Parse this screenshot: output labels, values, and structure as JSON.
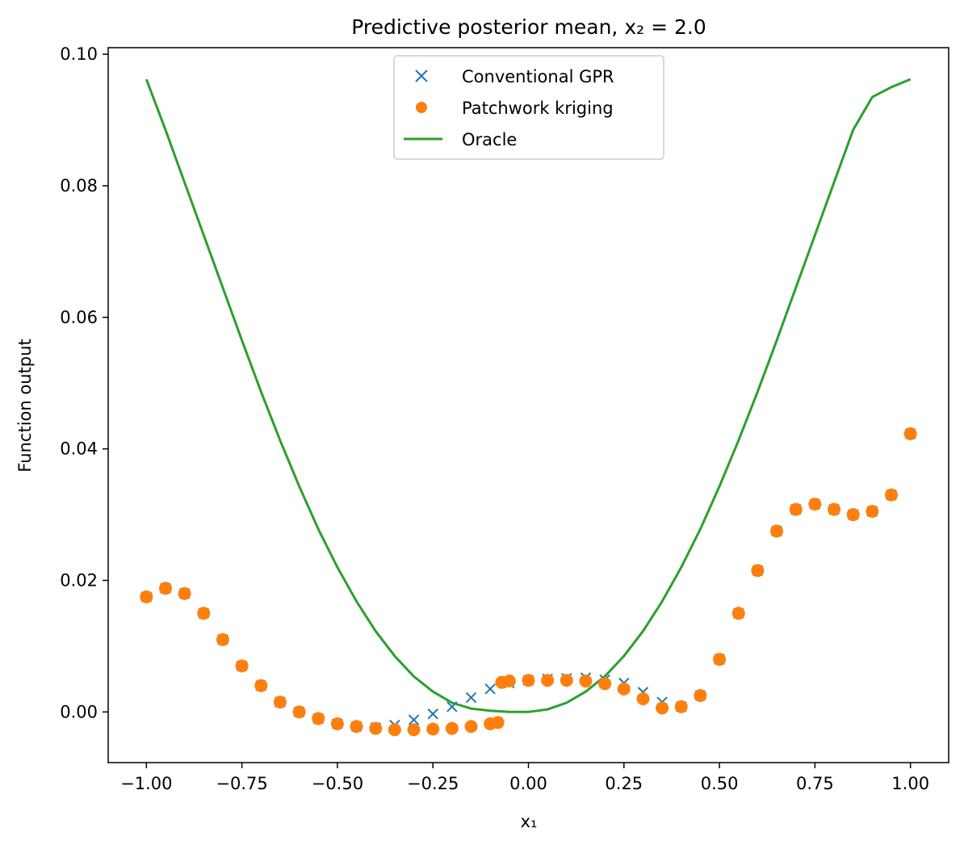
{
  "chart_data": {
    "type": "scatter",
    "title": "Predictive posterior mean, x₂ = 2.0",
    "xlabel": "x₁",
    "ylabel": "Function output",
    "xlim": [
      -1.1,
      1.1
    ],
    "ylim": [
      -0.0077,
      0.101
    ],
    "xticks": [
      -1.0,
      -0.75,
      -0.5,
      -0.25,
      0.0,
      0.25,
      0.5,
      0.75,
      1.0
    ],
    "xtick_labels": [
      "−1.00",
      "−0.75",
      "−0.50",
      "−0.25",
      "0.00",
      "0.25",
      "0.50",
      "0.75",
      "1.00"
    ],
    "yticks": [
      0.0,
      0.02,
      0.04,
      0.06,
      0.08,
      0.1
    ],
    "ytick_labels": [
      "0.00",
      "0.02",
      "0.04",
      "0.06",
      "0.08",
      "0.10"
    ],
    "grid": false,
    "legend_position": "top-center",
    "series": [
      {
        "name": "Conventional GPR",
        "marker": "x",
        "color": "#1f77b4",
        "x": [
          -1.0,
          -0.95,
          -0.9,
          -0.85,
          -0.8,
          -0.75,
          -0.7,
          -0.65,
          -0.6,
          -0.55,
          -0.5,
          -0.45,
          -0.4,
          -0.35,
          -0.3,
          -0.25,
          -0.2,
          -0.15,
          -0.1,
          -0.05,
          0.0,
          0.05,
          0.1,
          0.15,
          0.2,
          0.25,
          0.3,
          0.35,
          0.4,
          0.45,
          0.5,
          0.55,
          0.6,
          0.65,
          0.7,
          0.75,
          0.8,
          0.85,
          0.9,
          0.95,
          1.0
        ],
        "y": [
          0.0175,
          0.0188,
          0.018,
          0.015,
          0.011,
          0.007,
          0.004,
          0.0015,
          0.0,
          -0.001,
          -0.0018,
          -0.0022,
          -0.0024,
          -0.002,
          -0.0012,
          -0.0003,
          0.0008,
          0.0022,
          0.0035,
          0.0044,
          0.0048,
          0.005,
          0.0051,
          0.0052,
          0.0049,
          0.0044,
          0.003,
          0.0015,
          0.0008,
          0.0025,
          0.008,
          0.015,
          0.0215,
          0.0275,
          0.0308,
          0.0316,
          0.0308,
          0.03,
          0.0305,
          0.033,
          0.0423
        ]
      },
      {
        "name": "Patchwork kriging",
        "marker": "o",
        "color": "#ff7f0e",
        "x": [
          -1.0,
          -0.95,
          -0.9,
          -0.85,
          -0.8,
          -0.75,
          -0.7,
          -0.65,
          -0.6,
          -0.55,
          -0.5,
          -0.45,
          -0.4,
          -0.35,
          -0.3,
          -0.25,
          -0.2,
          -0.15,
          -0.1,
          -0.08,
          -0.07,
          -0.05,
          0.0,
          0.05,
          0.1,
          0.15,
          0.2,
          0.25,
          0.3,
          0.35,
          0.4,
          0.45,
          0.5,
          0.55,
          0.6,
          0.65,
          0.7,
          0.75,
          0.8,
          0.85,
          0.9,
          0.95,
          1.0
        ],
        "y": [
          0.0175,
          0.0188,
          0.018,
          0.015,
          0.011,
          0.007,
          0.004,
          0.0015,
          0.0,
          -0.001,
          -0.0018,
          -0.0022,
          -0.0025,
          -0.0027,
          -0.0027,
          -0.0026,
          -0.0025,
          -0.0022,
          -0.0018,
          -0.0016,
          0.0045,
          0.0047,
          0.0048,
          0.0048,
          0.0048,
          0.0047,
          0.0043,
          0.0035,
          0.002,
          0.0006,
          0.0008,
          0.0025,
          0.008,
          0.015,
          0.0215,
          0.0275,
          0.0308,
          0.0316,
          0.0308,
          0.03,
          0.0305,
          0.033,
          0.0423
        ]
      },
      {
        "name": "Oracle",
        "marker": "line",
        "color": "#2ca02c",
        "x": [
          -1.0,
          -0.95,
          -0.9,
          -0.85,
          -0.8,
          -0.75,
          -0.7,
          -0.65,
          -0.6,
          -0.55,
          -0.5,
          -0.45,
          -0.4,
          -0.35,
          -0.3,
          -0.25,
          -0.2,
          -0.15,
          -0.1,
          -0.05,
          0.0,
          0.05,
          0.1,
          0.15,
          0.2,
          0.25,
          0.3,
          0.35,
          0.4,
          0.45,
          0.5,
          0.55,
          0.6,
          0.65,
          0.7,
          0.75,
          0.8,
          0.85,
          0.9,
          0.95,
          1.0
        ],
        "y": [
          0.0962,
          0.0885,
          0.0805,
          0.0725,
          0.0645,
          0.0565,
          0.0487,
          0.0413,
          0.0343,
          0.0278,
          0.022,
          0.0168,
          0.0123,
          0.0085,
          0.0054,
          0.0031,
          0.0014,
          0.0005,
          0.0002,
          0.0,
          0.0,
          0.0004,
          0.0014,
          0.0031,
          0.0054,
          0.0085,
          0.0123,
          0.0168,
          0.022,
          0.0278,
          0.0343,
          0.0413,
          0.0487,
          0.0565,
          0.0645,
          0.0725,
          0.0805,
          0.0885,
          0.0935,
          0.095,
          0.0962
        ]
      }
    ]
  }
}
